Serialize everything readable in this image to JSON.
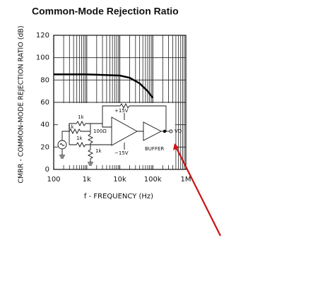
{
  "chart_data": {
    "type": "line",
    "title": "Common-Mode Rejection Ratio",
    "x_label": "f - FREQUENCY (Hz)",
    "y_label": "CMRR - COMMON-MODE REJECTION RATIO (dB)",
    "log_x": true,
    "grid": true,
    "xlim": [
      100,
      1000000
    ],
    "xticks": [
      {
        "value": 100,
        "label": "100"
      },
      {
        "value": 1000,
        "label": "1k"
      },
      {
        "value": 10000,
        "label": "10k"
      },
      {
        "value": 100000,
        "label": "100k"
      },
      {
        "value": 1000000,
        "label": "1M"
      }
    ],
    "ylim": [
      0,
      120
    ],
    "yticks": [
      0,
      20,
      40,
      60,
      80,
      100,
      120
    ],
    "series": [
      {
        "color": "#000000",
        "x": [
          100,
          1000,
          10000,
          20000,
          40000,
          70000,
          100000
        ],
        "values": [
          85,
          85,
          84,
          82,
          77,
          70,
          64
        ]
      }
    ],
    "annotations": [
      "1k",
      "1k",
      "1k",
      "100Ω",
      "+15V",
      "−15V",
      "1k",
      "BUFFER",
      "VO"
    ]
  }
}
